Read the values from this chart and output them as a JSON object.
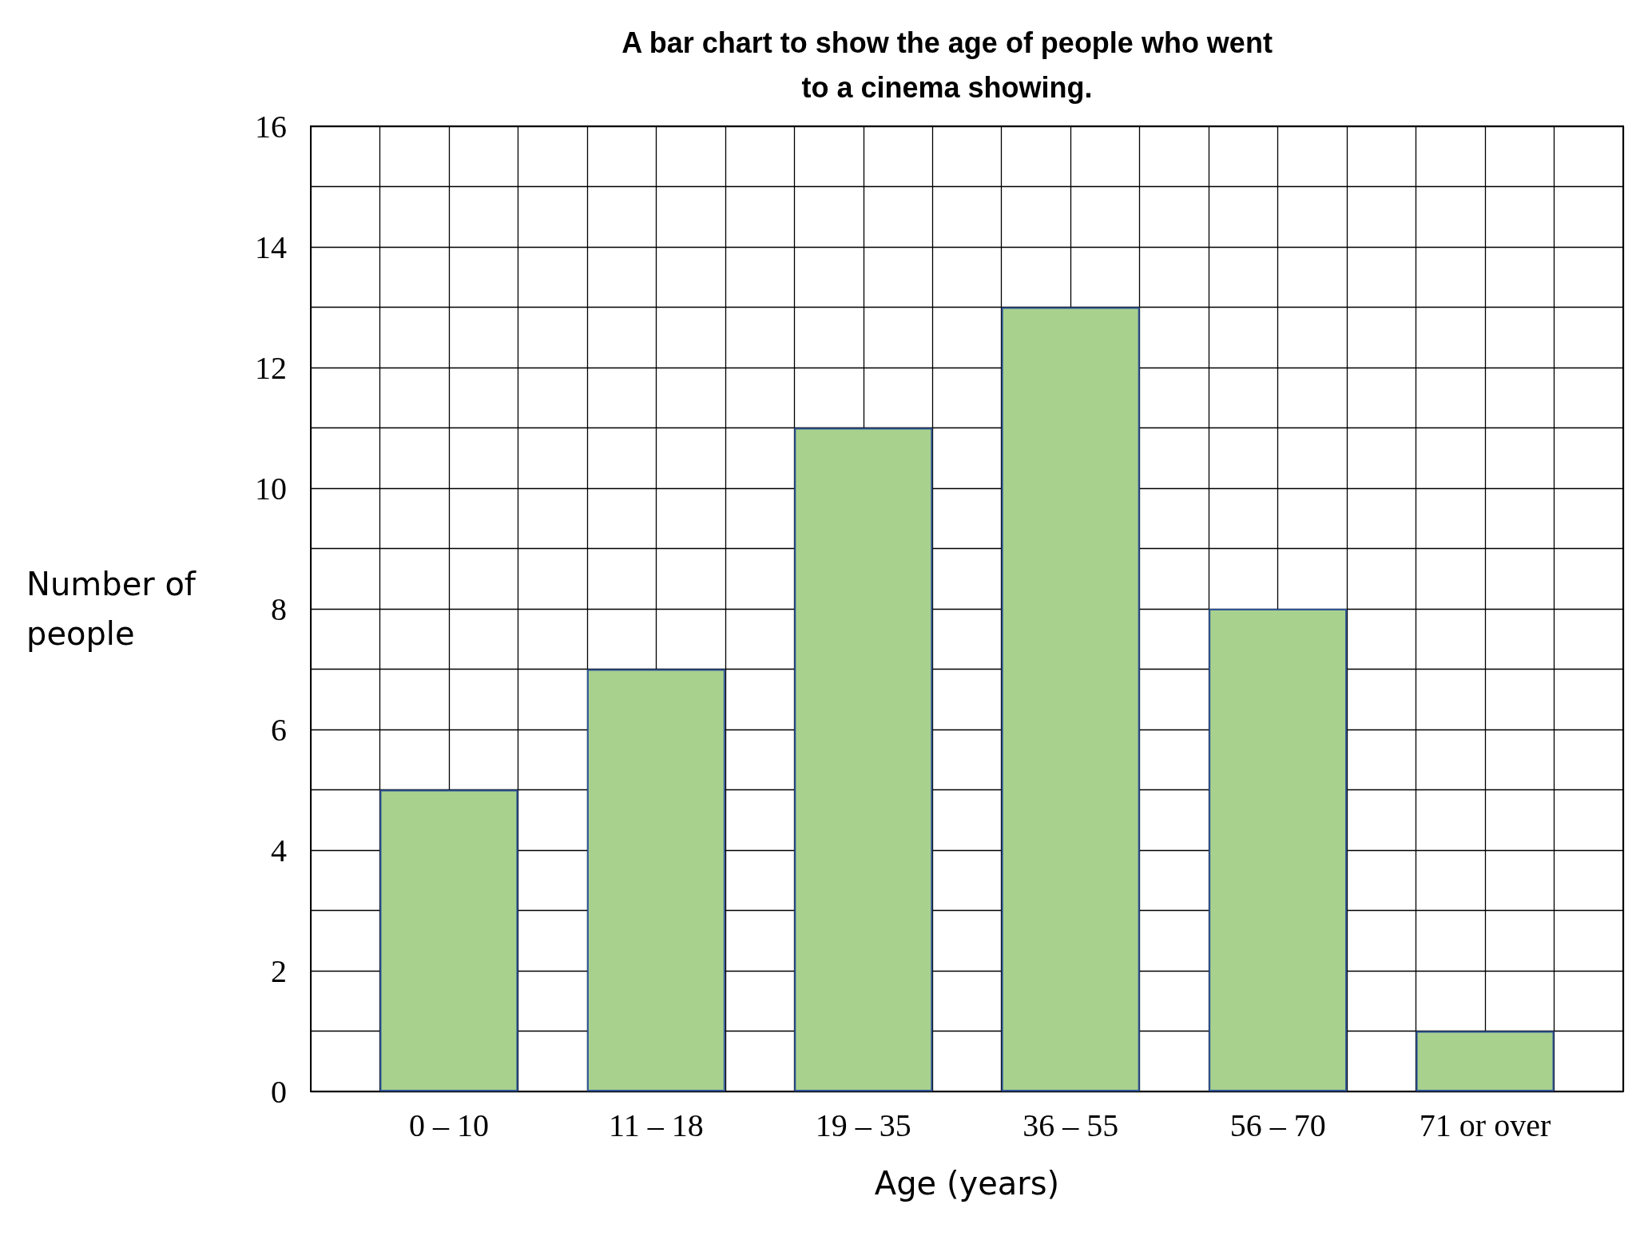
{
  "chart_data": {
    "type": "bar",
    "title": "A bar chart to show the age of people who went\nto a cinema showing.",
    "xlabel": "Age (years)",
    "ylabel": "Number of people",
    "categories": [
      "0 – 10",
      "11 – 18",
      "19 – 35",
      "36 – 55",
      "56 – 70",
      "71 or over"
    ],
    "values": [
      5,
      7,
      11,
      13,
      8,
      1
    ],
    "color": "#a9d18e",
    "ylim": [
      0,
      16
    ],
    "yticks": [
      0,
      2,
      4,
      6,
      8,
      10,
      12,
      14,
      16
    ],
    "grid": true
  }
}
